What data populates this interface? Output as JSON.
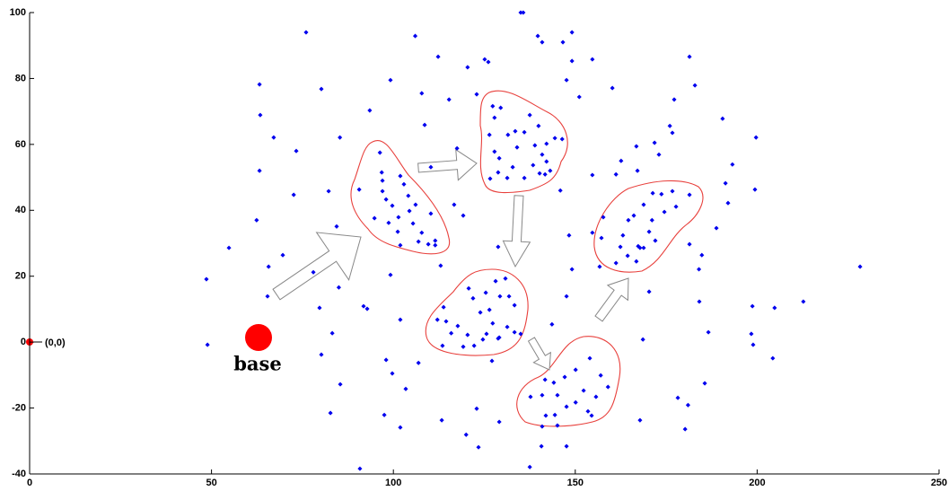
{
  "chart_data": {
    "type": "scatter",
    "color": "#0000ee",
    "xlim": [
      0,
      250
    ],
    "ylim": [
      -40,
      100
    ],
    "xticks": [
      0,
      50,
      100,
      150,
      200,
      250
    ],
    "yticks": [
      -40,
      -20,
      0,
      20,
      40,
      60,
      80,
      100
    ],
    "annotations": [
      "(0,0)",
      "base"
    ],
    "x": [
      48.6,
      48.9,
      54.8,
      63.2,
      63.4,
      63.2,
      62.4,
      67.1,
      65.7,
      65.4,
      69.6,
      72.6,
      73.3,
      76,
      80.2,
      78,
      79.7,
      82.2,
      83.2,
      82.7,
      85.3,
      84.4,
      85,
      85.4,
      80.2,
      90.8,
      93.5,
      91.8,
      92.8,
      99.2,
      98,
      99.7,
      97.5,
      99.2,
      101.9,
      101.9,
      106,
      107.8,
      108.6,
      106.9,
      103.4,
      112.3,
      110.3,
      111.5,
      113,
      113.3,
      115.3,
      117.5,
      116.7,
      119.2,
      120.4,
      122.9,
      125.1,
      126.1,
      128.8,
      135,
      135.7,
      139.7,
      140.9,
      146.6,
      149.1,
      149.1,
      147.6,
      151.1,
      160.2,
      154.7,
      154.7,
      154.7,
      156.7,
      148.3,
      149.1,
      147.6,
      143.6,
      130.8,
      129.1,
      127.1,
      129.1,
      122.9,
      120,
      123.4,
      137.5,
      140.7,
      147.6,
      140.9,
      167.8,
      168.6,
      170.3,
      178.2,
      180.2,
      181,
      185.6,
      186.6,
      184.1,
      184.8,
      184,
      181.4,
      188.8,
      192,
      193.2,
      191.3,
      190.5,
      181.4,
      182.9,
      177.2,
      176,
      176.7,
      171.8,
      173,
      167.1,
      166.8,
      162.6,
      161.2,
      198.7,
      198.9,
      199.7,
      199.4,
      204.8,
      204.3,
      212.7,
      228.3,
      198.4,
      90.6,
      96.3,
      96.8,
      97,
      97,
      98,
      99.7,
      98.7,
      101.2,
      101.9,
      94.8,
      102.9,
      104.1,
      104.4,
      105.4,
      107.8,
      106.9,
      109.6,
      101.4,
      101.9,
      106.1,
      110.3,
      111.5,
      127.3,
      127.8,
      129.5,
      126.4,
      131.5,
      133.5,
      136,
      137.5,
      139.9,
      142.1,
      144.4,
      146.4,
      127.8,
      129.1,
      128.8,
      132.8,
      131.3,
      134,
      138.9,
      140.9,
      142.1,
      143.1,
      141.7,
      136,
      138.4,
      140.2,
      145.9,
      126.6,
      157.7,
      157.2,
      161.2,
      162.4,
      163.1,
      164.6,
      168.8,
      171.3,
      173.7,
      176.7,
      181.4,
      177.7,
      174.5,
      171.1,
      170.3,
      167.3,
      167.8,
      168.8,
      166.8,
      172,
      166.1,
      164.4,
      128.1,
      120.7,
      121.9,
      123.9,
      126.4,
      129.3,
      131.8,
      133.3,
      127.3,
      131.3,
      133.3,
      135,
      113.8,
      112.1,
      114.5,
      115.9,
      117.7,
      120.4,
      119.2,
      122.2,
      124.6,
      125.6,
      128.8,
      113.5,
      125.4,
      141.7,
      137.7,
      140.9,
      145.1,
      147.1,
      150.1,
      154,
      157,
      159,
      155.7,
      153.5,
      154.5,
      150.1,
      144.4,
      141.9,
      145.1,
      147.6,
      144.1,
      152.3
    ],
    "values": [
      19.1,
      -0.8,
      28.6,
      78.2,
      68.9,
      52,
      37,
      62.1,
      22.9,
      13.9,
      26.4,
      44.7,
      58,
      94,
      76.8,
      21.2,
      10.4,
      45.8,
      2.7,
      -21.5,
      62.1,
      35.1,
      16.6,
      -12.8,
      -3.8,
      -38.4,
      70.3,
      10.9,
      10.1,
      79.5,
      -5.4,
      -9.5,
      -22.1,
      20.4,
      6.8,
      -25.9,
      92.9,
      75.5,
      65.9,
      -6.3,
      -14.2,
      86.6,
      53.1,
      29.4,
      23.2,
      -23.7,
      73.6,
      58.8,
      41.7,
      38.4,
      83.4,
      75.2,
      85.8,
      85,
      28.9,
      100,
      100,
      92.9,
      91,
      91,
      94,
      85.3,
      79.5,
      74.4,
      77.1,
      85.8,
      50.7,
      33.2,
      22.9,
      32.4,
      22.1,
      13.9,
      5.4,
      19.3,
      1.4,
      -5.7,
      -24.2,
      -20.2,
      -28.1,
      -31.9,
      -37.9,
      -31.6,
      -31.6,
      -25.6,
      -23.7,
      0.8,
      15.3,
      -16.9,
      -26.4,
      -19.1,
      -12.5,
      3,
      12.3,
      26.4,
      22.1,
      29.7,
      34.6,
      42.2,
      53.9,
      48.2,
      67.8,
      86.6,
      77.9,
      73.6,
      65.6,
      63.5,
      60.5,
      56.9,
      52,
      59.4,
      55,
      50.9,
      10.9,
      -0.8,
      62.1,
      46.3,
      10.4,
      -4.9,
      12.3,
      22.9,
      2.5,
      46.3,
      57.5,
      51.5,
      49,
      45.8,
      43.3,
      41.4,
      36.2,
      33.5,
      29.4,
      37.6,
      47.9,
      44.4,
      39.8,
      36,
      33.2,
      30.5,
      29.7,
      37.9,
      50.4,
      41.7,
      39,
      30.8,
      71.6,
      68.1,
      71.1,
      62.9,
      62.9,
      64,
      63.7,
      68.9,
      65.6,
      60.2,
      61.9,
      61.6,
      57.8,
      55.8,
      51.5,
      53.1,
      49.8,
      59.1,
      59.7,
      56.9,
      54.8,
      52,
      50.9,
      49.8,
      53.7,
      51.2,
      46,
      49.6,
      37.9,
      31.6,
      24,
      28.9,
      32.4,
      37,
      41.7,
      45.2,
      44.9,
      45.8,
      44.7,
      41.1,
      39.5,
      37,
      33.5,
      29.1,
      28.6,
      28.6,
      24.5,
      30.8,
      38.4,
      26.2,
      18.5,
      16.3,
      13.3,
      9,
      9.8,
      13.9,
      13.9,
      11.2,
      5.7,
      4.6,
      3,
      2.5,
      10.6,
      6.8,
      6.3,
      2.7,
      4.9,
      2.2,
      -1.4,
      -1.1,
      0.8,
      2.5,
      1.1,
      -1.1,
      15,
      -11.4,
      -16.6,
      -16.1,
      -16.1,
      -10.6,
      -8.4,
      -4.9,
      -10.1,
      -13.6,
      -16.6,
      -21,
      -22.3,
      -18.3,
      -22.1,
      -22.3,
      -25.3,
      -19.6,
      -12.3,
      -14.7
    ]
  }
}
